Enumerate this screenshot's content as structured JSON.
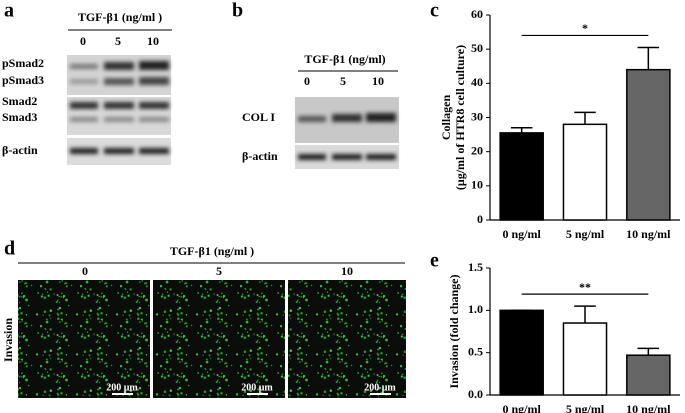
{
  "panels": {
    "a": {
      "label": "a",
      "treatment": "TGF-β1 (ng/ml )",
      "doses": [
        "0",
        "5",
        "10"
      ],
      "rows": [
        "pSmad2",
        "pSmad3",
        "Smad2",
        "Smad3",
        "β-actin"
      ]
    },
    "b": {
      "label": "b",
      "treatment": "TGF-β1 (ng/ml)",
      "doses": [
        "0",
        "5",
        "10"
      ],
      "rows": [
        "COL I",
        "β-actin"
      ]
    },
    "d": {
      "label": "d",
      "treatment": "TGF-β1 (ng/ml )",
      "doses": [
        "0",
        "5",
        "10"
      ],
      "row_label": "Invasion",
      "scale_bar": "200 μm"
    }
  },
  "chart_data": [
    {
      "type": "bar",
      "label": "c",
      "y_label": [
        "Collagen",
        "(μg/ml of HTR8 cell culture)"
      ],
      "categories": [
        "0 ng/ml",
        "5 ng/ml",
        "10 ng/ml"
      ],
      "values": [
        25.5,
        28,
        44
      ],
      "errors": [
        1.5,
        3.5,
        6.5
      ],
      "colors": [
        "#000000",
        "#ffffff",
        "#666666"
      ],
      "ylim": [
        0,
        60
      ],
      "yticks": [
        0,
        10,
        20,
        30,
        40,
        50,
        60
      ],
      "annotation": "*"
    },
    {
      "type": "bar",
      "label": "e",
      "y_label": [
        "Invasion (fold change)"
      ],
      "categories": [
        "0 ng/ml",
        "5 ng/ml",
        "10 ng/ml"
      ],
      "values": [
        1.0,
        0.85,
        0.47
      ],
      "errors": [
        0,
        0.2,
        0.08
      ],
      "colors": [
        "#000000",
        "#ffffff",
        "#666666"
      ],
      "ylim": [
        0,
        1.5
      ],
      "yticks": [
        {
          "value": 0,
          "label": "0.0"
        },
        {
          "value": 0.5,
          "label": "0.5"
        },
        {
          "value": 1,
          "label": "1.0"
        },
        {
          "value": 1.5,
          "label": "1.5"
        }
      ],
      "annotation": "**"
    }
  ]
}
